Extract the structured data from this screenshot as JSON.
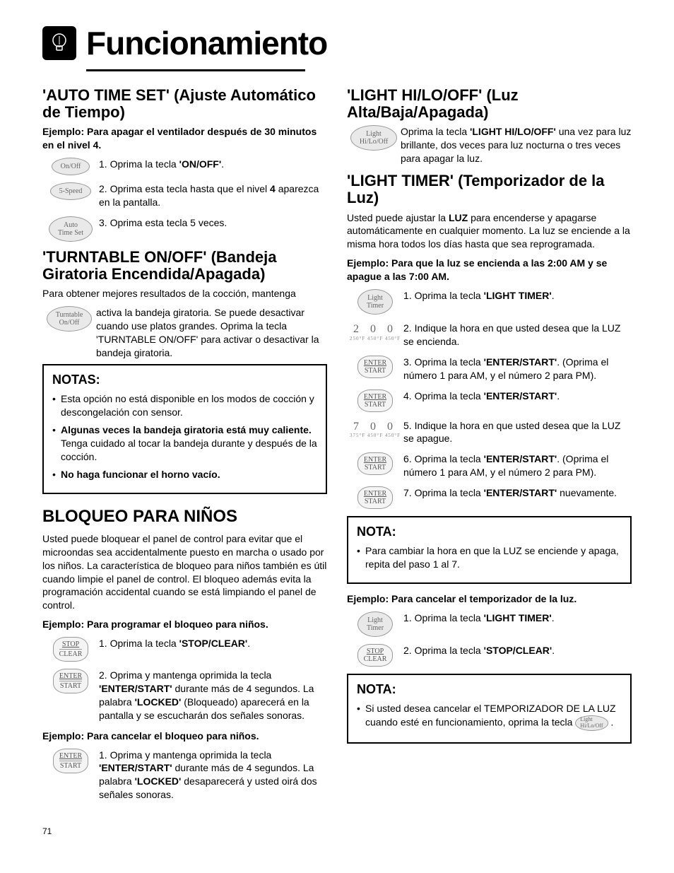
{
  "page_title": "Funcionamiento",
  "page_number": "71",
  "left": {
    "sec1": {
      "title": "'AUTO TIME SET' (Ajuste Automático de Tiempo)",
      "example": "Ejemplo: Para apagar el ventilador después de 30 minutos en el nivel 4.",
      "steps": [
        {
          "icon": "On/Off",
          "text_pre": "1. Oprima la tecla ",
          "bold": "'ON/OFF'",
          "text_post": "."
        },
        {
          "icon": "5-Speed",
          "text_pre": "2. Oprima esta tecla hasta que el nivel ",
          "bold": "4",
          "text_post": " aparezca en la pantalla."
        },
        {
          "icon": "Auto\nTime Set",
          "text_pre": "3. Oprima esta tecla 5 veces.",
          "bold": "",
          "text_post": ""
        }
      ]
    },
    "sec2": {
      "title": "'TURNTABLE ON/OFF' (Bandeja Giratoria Encendida/Apagada)",
      "intro": "Para obtener mejores resultados de la cocción, mantenga",
      "icon": "Turntable\nOn/Off",
      "body": "activa la bandeja giratoria. Se puede desactivar cuando use platos grandes. Oprima la tecla 'TURNTABLE ON/OFF' para activar o desactivar la bandeja giratoria."
    },
    "notes": {
      "title": "NOTAS:",
      "items": [
        {
          "pre": "Esta opción no está disponible en los modos de cocción y descongelación con sensor.",
          "bold_lead": ""
        },
        {
          "bold_lead": "Algunas veces la bandeja giratoria está muy caliente.",
          "rest": " Tenga cuidado al tocar la bandeja durante y después de la cocción."
        },
        {
          "bold_lead": "No haga funcionar el horno vacío.",
          "rest": ""
        }
      ]
    },
    "sec3": {
      "title": "BLOQUEO PARA NIÑOS",
      "intro": "Usted puede bloquear el panel de control para evitar que el microondas sea accidentalmente puesto en marcha o usado por los niños. La característica de bloqueo para niños también es útil cuando limpie el panel de control. El bloqueo además evita la programación accidental cuando se está limpiando el panel de control.",
      "ex1": "Ejemplo: Para programar el bloqueo para niños.",
      "steps1": [
        {
          "icon_top": "STOP",
          "icon_bot": "CLEAR",
          "html": "1. Oprima la tecla <span class='bold'>'STOP/CLEAR'</span>."
        },
        {
          "icon_top": "ENTER",
          "icon_bot": "START",
          "html": "2. Oprima y mantenga oprimida la tecla <span class='bold'>'ENTER/START'</span> durante más de 4 segundos. La palabra <span class='bold'>'LOCKED'</span> (Bloqueado) aparecerá en la pantalla y se escucharán dos señales sonoras."
        }
      ],
      "ex2": "Ejemplo: Para cancelar el bloqueo para niños.",
      "steps2": [
        {
          "icon_top": "ENTER",
          "icon_bot": "START",
          "html": "1. Oprima y mantenga oprimida la tecla <span class='bold'>'ENTER/START'</span> durante más de 4 segundos. La palabra <span class='bold'>'LOCKED'</span> desaparecerá y usted oirá dos señales sonoras."
        }
      ]
    }
  },
  "right": {
    "sec1": {
      "title": "'LIGHT HI/LO/OFF' (Luz Alta/Baja/Apagada)",
      "icon": "Light\nHi/Lo/Off",
      "body_pre": "Oprima la tecla ",
      "body_bold": "'LIGHT HI/LO/OFF'",
      "body_post": " una vez para luz brillante, dos veces para luz nocturna o tres veces para apagar la luz."
    },
    "sec2": {
      "title": "'LIGHT TIMER' (Temporizador de la Luz)",
      "intro_pre": "Usted puede ajustar la ",
      "intro_bold": "LUZ",
      "intro_post": " para encenderse y apagarse automáticamente en cualquier momento. La luz se enciende a la misma hora todos los días hasta que sea reprogramada.",
      "example": "Ejemplo: Para que la luz se encienda a las 2:00 AM y se apague a las 7:00 AM.",
      "steps": [
        {
          "type": "oval",
          "icon": "Light\nTimer",
          "html": "1. Oprima la tecla <span class='bold'>'LIGHT TIMER'</span>."
        },
        {
          "type": "digits",
          "digits": "2 0 0",
          "sub": "250°F  450°F  450°F",
          "html": "2. Indique la hora en que usted desea que la LUZ se encienda."
        },
        {
          "type": "es",
          "top": "ENTER",
          "bot": "START",
          "html": "3. Oprima la tecla <span class='bold'>'ENTER/START'</span>. (Oprima el número 1 para AM, y el número 2 para PM)."
        },
        {
          "type": "es",
          "top": "ENTER",
          "bot": "START",
          "html": "4. Oprima la tecla <span class='bold'>'ENTER/START'</span>."
        },
        {
          "type": "digits",
          "digits": "7 0 0",
          "sub": "375°F  450°F  450°F",
          "html": "5. Indique la hora en que usted desea que la LUZ se apague."
        },
        {
          "type": "es",
          "top": "ENTER",
          "bot": "START",
          "html": "6. Oprima la tecla <span class='bold'>'ENTER/START'</span>. (Oprima el número 1 para AM, y el número 2 para PM)."
        },
        {
          "type": "es",
          "top": "ENTER",
          "bot": "START",
          "html": "7. Oprima la tecla <span class='bold'>'ENTER/START'</span> nuevamente."
        }
      ]
    },
    "note1": {
      "title": "NOTA:",
      "text": "Para cambiar la hora en que la LUZ se enciende y apaga, repita del paso 1 al 7."
    },
    "cancel": {
      "example": "Ejemplo: Para cancelar el temporizador de la luz.",
      "steps": [
        {
          "type": "oval",
          "icon": "Light\nTimer",
          "html": "1. Oprima la tecla <span class='bold'>'LIGHT TIMER'</span>."
        },
        {
          "type": "es",
          "top": "STOP",
          "bot": "CLEAR",
          "html": "2. Oprima la tecla <span class='bold'>'STOP/CLEAR'</span>."
        }
      ]
    },
    "note2": {
      "title": "NOTA:",
      "text_pre": "Si usted desea cancelar el TEMPORIZADOR DE LA LUZ cuando esté en funcionamiento, oprima la tecla ",
      "inline_icon": "Light\nHi/Lo/Off",
      "text_post": " ."
    }
  }
}
